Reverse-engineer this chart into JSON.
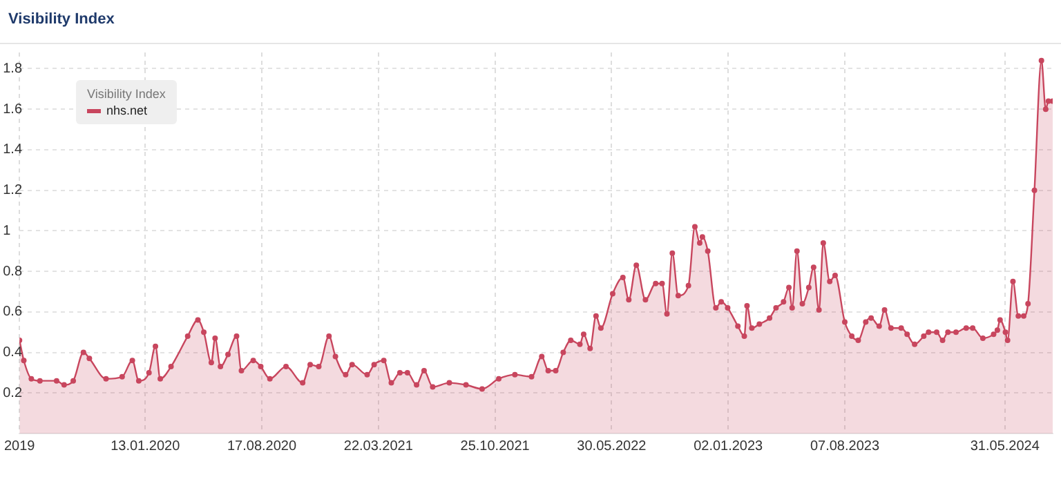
{
  "chart_data": {
    "type": "area",
    "title": "Visibility Index",
    "legend_title": "Visibility Index",
    "legend": "top left",
    "grid": true,
    "marker": "circle",
    "line_style": "solid",
    "ylim": [
      0,
      1.88
    ],
    "yticks": [
      0.2,
      0.4,
      0.6,
      0.8,
      1,
      1.2,
      1.4,
      1.6,
      1.8
    ],
    "xlim": [
      "2019-05-24",
      "2024-08-28"
    ],
    "xticks": [
      {
        "value": "2019-05-24",
        "label": "2019"
      },
      {
        "value": "2020-01-13",
        "label": "13.01.2020"
      },
      {
        "value": "2020-08-17",
        "label": "17.08.2020"
      },
      {
        "value": "2021-03-22",
        "label": "22.03.2021"
      },
      {
        "value": "2021-10-25",
        "label": "25.10.2021"
      },
      {
        "value": "2022-05-30",
        "label": "30.05.2022"
      },
      {
        "value": "2023-01-02",
        "label": "02.01.2023"
      },
      {
        "value": "2023-08-07",
        "label": "07.08.2023"
      },
      {
        "value": "2024-05-31",
        "label": "31.05.2024"
      }
    ],
    "x": [
      "2019-05-24",
      "2019-06-01",
      "2019-06-15",
      "2019-07-01",
      "2019-08-01",
      "2019-08-15",
      "2019-09-01",
      "2019-09-20",
      "2019-10-01",
      "2019-11-01",
      "2019-12-01",
      "2019-12-20",
      "2020-01-01",
      "2020-01-20",
      "2020-02-01",
      "2020-02-10",
      "2020-03-01",
      "2020-04-01",
      "2020-04-20",
      "2020-05-01",
      "2020-05-15",
      "2020-05-22",
      "2020-06-01",
      "2020-06-15",
      "2020-07-01",
      "2020-07-10",
      "2020-08-01",
      "2020-08-15",
      "2020-09-01",
      "2020-10-01",
      "2020-11-01",
      "2020-11-15",
      "2020-12-01",
      "2020-12-20",
      "2021-01-01",
      "2021-01-20",
      "2021-02-01",
      "2021-03-01",
      "2021-03-14",
      "2021-04-01",
      "2021-04-15",
      "2021-05-01",
      "2021-05-15",
      "2021-06-01",
      "2021-06-15",
      "2021-07-01",
      "2021-08-01",
      "2021-09-01",
      "2021-10-01",
      "2021-11-01",
      "2021-12-01",
      "2022-01-01",
      "2022-01-20",
      "2022-02-01",
      "2022-02-15",
      "2022-03-01",
      "2022-03-15",
      "2022-04-01",
      "2022-04-08",
      "2022-04-20",
      "2022-05-01",
      "2022-05-10",
      "2022-06-01",
      "2022-06-20",
      "2022-07-01",
      "2022-07-15",
      "2022-08-01",
      "2022-08-20",
      "2022-09-01",
      "2022-09-10",
      "2022-09-20",
      "2022-10-01",
      "2022-10-20",
      "2022-11-01",
      "2022-11-10",
      "2022-11-15",
      "2022-11-25",
      "2022-12-10",
      "2022-12-20",
      "2023-01-01",
      "2023-01-20",
      "2023-02-01",
      "2023-02-06",
      "2023-02-15",
      "2023-03-01",
      "2023-03-20",
      "2023-04-01",
      "2023-04-15",
      "2023-04-25",
      "2023-05-01",
      "2023-05-10",
      "2023-05-20",
      "2023-06-01",
      "2023-06-10",
      "2023-06-20",
      "2023-06-28",
      "2023-07-10",
      "2023-07-20",
      "2023-08-07",
      "2023-08-20",
      "2023-09-01",
      "2023-09-15",
      "2023-09-25",
      "2023-10-10",
      "2023-10-20",
      "2023-11-01",
      "2023-11-20",
      "2023-12-01",
      "2023-12-15",
      "2024-01-01",
      "2024-01-10",
      "2024-01-25",
      "2024-02-05",
      "2024-02-15",
      "2024-03-01",
      "2024-03-20",
      "2024-04-01",
      "2024-04-20",
      "2024-05-10",
      "2024-05-17",
      "2024-05-22",
      "2024-06-01",
      "2024-06-05",
      "2024-06-15",
      "2024-06-25",
      "2024-07-05",
      "2024-07-13",
      "2024-07-25",
      "2024-08-07",
      "2024-08-15",
      "2024-08-20",
      "2024-08-28"
    ],
    "series": [
      {
        "name": "nhs.net",
        "color": "#c8465e",
        "values": [
          0.46,
          0.36,
          0.27,
          0.26,
          0.26,
          0.24,
          0.26,
          0.4,
          0.37,
          0.27,
          0.28,
          0.36,
          0.26,
          0.3,
          0.43,
          0.27,
          0.33,
          0.48,
          0.56,
          0.5,
          0.35,
          0.47,
          0.33,
          0.39,
          0.48,
          0.31,
          0.36,
          0.33,
          0.27,
          0.33,
          0.25,
          0.34,
          0.33,
          0.48,
          0.38,
          0.29,
          0.34,
          0.29,
          0.34,
          0.36,
          0.25,
          0.3,
          0.3,
          0.24,
          0.31,
          0.23,
          0.25,
          0.24,
          0.22,
          0.27,
          0.29,
          0.28,
          0.38,
          0.31,
          0.31,
          0.4,
          0.46,
          0.44,
          0.49,
          0.42,
          0.58,
          0.52,
          0.69,
          0.77,
          0.66,
          0.83,
          0.66,
          0.74,
          0.74,
          0.59,
          0.89,
          0.68,
          0.73,
          1.02,
          0.94,
          0.97,
          0.9,
          0.62,
          0.65,
          0.62,
          0.53,
          0.48,
          0.63,
          0.52,
          0.54,
          0.57,
          0.62,
          0.65,
          0.72,
          0.62,
          0.9,
          0.64,
          0.72,
          0.82,
          0.61,
          0.94,
          0.75,
          0.78,
          0.55,
          0.48,
          0.46,
          0.55,
          0.57,
          0.53,
          0.61,
          0.52,
          0.52,
          0.49,
          0.44,
          0.48,
          0.5,
          0.5,
          0.46,
          0.5,
          0.5,
          0.52,
          0.52,
          0.47,
          0.49,
          0.51,
          0.56,
          0.5,
          0.46,
          0.75,
          0.58,
          0.58,
          0.64,
          1.2,
          1.84,
          1.6,
          1.64,
          1.64
        ]
      }
    ]
  }
}
